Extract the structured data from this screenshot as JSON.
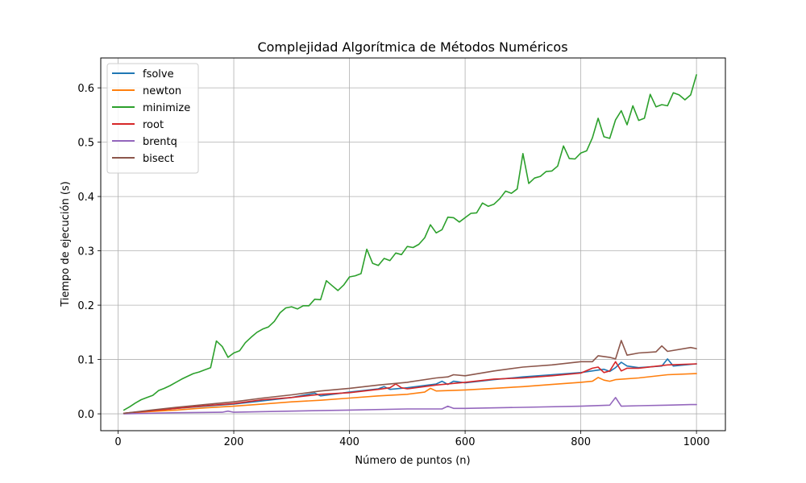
{
  "chart_data": {
    "type": "line",
    "title": "Complejidad Algorítmica de Métodos Numéricos",
    "xlabel": "Número de puntos (n)",
    "ylabel": "Tiempo de ejecución (s)",
    "xlim": [
      -30,
      1050
    ],
    "ylim": [
      -0.031,
      0.655
    ],
    "xticks": [
      0,
      200,
      400,
      600,
      800,
      1000
    ],
    "yticks": [
      0.0,
      0.1,
      0.2,
      0.3,
      0.4,
      0.5,
      0.6
    ],
    "xtick_labels": [
      "0",
      "200",
      "400",
      "600",
      "800",
      "1000"
    ],
    "ytick_labels": [
      "0.0",
      "0.1",
      "0.2",
      "0.3",
      "0.4",
      "0.5",
      "0.6"
    ],
    "grid": true,
    "legend_position": "top-left",
    "x": [
      10,
      110,
      210,
      310,
      410,
      510,
      610,
      710,
      860,
      960,
      1000
    ],
    "series": [
      {
        "name": "fsolve",
        "color": "#1f77b4",
        "x": [
          10,
          50,
          100,
          150,
          200,
          250,
          300,
          340,
          350,
          400,
          450,
          460,
          470,
          500,
          550,
          560,
          570,
          580,
          600,
          650,
          700,
          750,
          800,
          840,
          850,
          860,
          870,
          880,
          900,
          940,
          950,
          960,
          1000
        ],
        "values": [
          0.001,
          0.005,
          0.01,
          0.014,
          0.018,
          0.024,
          0.03,
          0.038,
          0.033,
          0.04,
          0.046,
          0.05,
          0.045,
          0.048,
          0.055,
          0.06,
          0.054,
          0.06,
          0.057,
          0.063,
          0.068,
          0.072,
          0.076,
          0.082,
          0.078,
          0.085,
          0.095,
          0.088,
          0.085,
          0.088,
          0.101,
          0.088,
          0.092
        ]
      },
      {
        "name": "newton",
        "color": "#ff7f0e",
        "x": [
          10,
          50,
          100,
          150,
          200,
          250,
          300,
          350,
          400,
          450,
          500,
          530,
          540,
          550,
          600,
          650,
          700,
          750,
          800,
          820,
          830,
          840,
          850,
          860,
          900,
          950,
          1000
        ],
        "values": [
          0.001,
          0.004,
          0.007,
          0.011,
          0.014,
          0.018,
          0.022,
          0.025,
          0.029,
          0.033,
          0.036,
          0.04,
          0.047,
          0.042,
          0.044,
          0.047,
          0.05,
          0.054,
          0.058,
          0.06,
          0.067,
          0.062,
          0.06,
          0.063,
          0.066,
          0.072,
          0.074
        ]
      },
      {
        "name": "minimize",
        "color": "#2ca02c",
        "x": [
          10,
          20,
          30,
          40,
          50,
          60,
          70,
          80,
          90,
          100,
          110,
          120,
          130,
          140,
          150,
          160,
          170,
          180,
          190,
          200,
          210,
          220,
          230,
          240,
          250,
          260,
          270,
          280,
          290,
          300,
          310,
          320,
          330,
          340,
          350,
          360,
          370,
          380,
          390,
          400,
          410,
          420,
          430,
          440,
          450,
          460,
          470,
          480,
          490,
          500,
          510,
          520,
          530,
          540,
          550,
          560,
          570,
          580,
          590,
          600,
          610,
          620,
          630,
          640,
          650,
          660,
          670,
          680,
          690,
          700,
          710,
          720,
          730,
          740,
          750,
          760,
          770,
          780,
          790,
          800,
          810,
          820,
          830,
          840,
          850,
          860,
          870,
          880,
          890,
          900,
          910,
          920,
          930,
          940,
          950,
          960,
          970,
          980,
          990,
          1000
        ],
        "values": [
          0.007,
          0.013,
          0.02,
          0.026,
          0.03,
          0.034,
          0.043,
          0.047,
          0.052,
          0.058,
          0.064,
          0.069,
          0.074,
          0.077,
          0.081,
          0.085,
          0.134,
          0.124,
          0.104,
          0.112,
          0.116,
          0.131,
          0.141,
          0.15,
          0.156,
          0.16,
          0.17,
          0.186,
          0.195,
          0.197,
          0.193,
          0.199,
          0.199,
          0.211,
          0.21,
          0.245,
          0.236,
          0.227,
          0.237,
          0.252,
          0.254,
          0.258,
          0.303,
          0.277,
          0.273,
          0.286,
          0.282,
          0.296,
          0.293,
          0.308,
          0.306,
          0.312,
          0.324,
          0.348,
          0.333,
          0.339,
          0.362,
          0.361,
          0.353,
          0.361,
          0.369,
          0.37,
          0.388,
          0.382,
          0.386,
          0.396,
          0.41,
          0.406,
          0.414,
          0.479,
          0.424,
          0.434,
          0.437,
          0.446,
          0.447,
          0.456,
          0.493,
          0.47,
          0.469,
          0.48,
          0.484,
          0.508,
          0.544,
          0.51,
          0.507,
          0.541,
          0.558,
          0.532,
          0.567,
          0.54,
          0.544,
          0.588,
          0.565,
          0.569,
          0.567,
          0.591,
          0.587,
          0.578,
          0.587,
          0.624
        ]
      },
      {
        "name": "root",
        "color": "#d62728",
        "x": [
          10,
          50,
          100,
          150,
          200,
          250,
          300,
          350,
          400,
          450,
          470,
          480,
          490,
          500,
          550,
          600,
          650,
          700,
          750,
          800,
          820,
          830,
          840,
          850,
          860,
          870,
          880,
          900,
          950,
          1000
        ],
        "values": [
          0.001,
          0.005,
          0.01,
          0.015,
          0.019,
          0.026,
          0.03,
          0.036,
          0.039,
          0.045,
          0.048,
          0.055,
          0.048,
          0.046,
          0.053,
          0.058,
          0.064,
          0.066,
          0.07,
          0.075,
          0.084,
          0.086,
          0.076,
          0.079,
          0.096,
          0.079,
          0.084,
          0.084,
          0.09,
          0.092
        ]
      },
      {
        "name": "brentq",
        "color": "#9467bd",
        "x": [
          10,
          100,
          180,
          190,
          200,
          300,
          400,
          500,
          560,
          570,
          580,
          600,
          700,
          800,
          850,
          860,
          870,
          900,
          950,
          990,
          1000
        ],
        "values": [
          0.0,
          0.002,
          0.003,
          0.005,
          0.003,
          0.005,
          0.007,
          0.009,
          0.009,
          0.014,
          0.01,
          0.01,
          0.012,
          0.014,
          0.016,
          0.03,
          0.014,
          0.015,
          0.016,
          0.017,
          0.017
        ]
      },
      {
        "name": "bisect",
        "color": "#8c564b",
        "x": [
          10,
          50,
          100,
          150,
          200,
          250,
          300,
          350,
          400,
          450,
          500,
          550,
          570,
          580,
          600,
          650,
          700,
          750,
          800,
          820,
          830,
          850,
          860,
          870,
          880,
          900,
          930,
          940,
          950,
          990,
          1000
        ],
        "values": [
          0.001,
          0.006,
          0.012,
          0.017,
          0.022,
          0.029,
          0.035,
          0.042,
          0.047,
          0.053,
          0.058,
          0.066,
          0.068,
          0.072,
          0.07,
          0.079,
          0.086,
          0.09,
          0.096,
          0.096,
          0.107,
          0.104,
          0.101,
          0.135,
          0.108,
          0.112,
          0.114,
          0.125,
          0.115,
          0.122,
          0.12
        ]
      }
    ]
  }
}
